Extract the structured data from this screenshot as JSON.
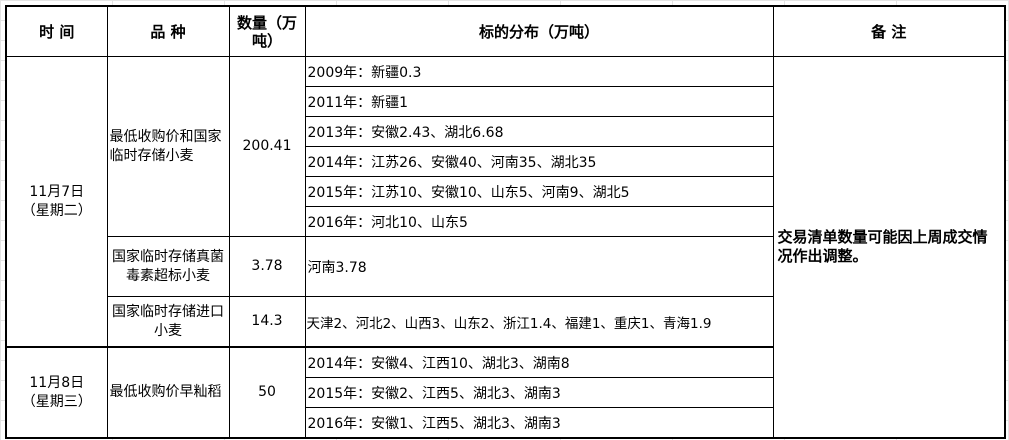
{
  "header": {
    "time": "时 间",
    "variety": "品 种",
    "quantity": "数量（万吨）",
    "distribution": "标的分布（万吨）",
    "remarks": "备 注"
  },
  "groups": [
    {
      "date": "11月7日",
      "weekday": "（星期二）",
      "items": [
        {
          "variety": "最低收购价和国家临时存储小麦",
          "quantity": "200.41",
          "distribution": [
            "2009年：新疆0.3",
            "2011年：新疆1",
            "2013年：安徽2.43、湖北6.68",
            "2014年：江苏26、安徽40、河南35、湖北35",
            "2015年：江苏10、安徽10、山东5、河南9、湖北5",
            "2016年：河北10、山东5"
          ]
        },
        {
          "variety": "国家临时存储真菌毒素超标小麦",
          "quantity": "3.78",
          "distribution": [
            "河南3.78"
          ]
        },
        {
          "variety": "国家临时存储进口小麦",
          "quantity": "14.3",
          "distribution": [
            "天津2、河北2、山西3、山东2、浙江1.4、福建1、重庆1、青海1.9"
          ]
        }
      ]
    },
    {
      "date": "11月8日",
      "weekday": "（星期三）",
      "items": [
        {
          "variety": "最低收购价早籼稻",
          "quantity": "50",
          "distribution": [
            "2014年：安徽4、江西10、湖北3、湖南8",
            "2015年：安徽2、江西5、湖北3、湖南3",
            "2016年：安徽1、江西5、湖北3、湖南3"
          ]
        }
      ]
    }
  ],
  "remarks": "交易清单数量可能因上周成交情况作出调整。"
}
